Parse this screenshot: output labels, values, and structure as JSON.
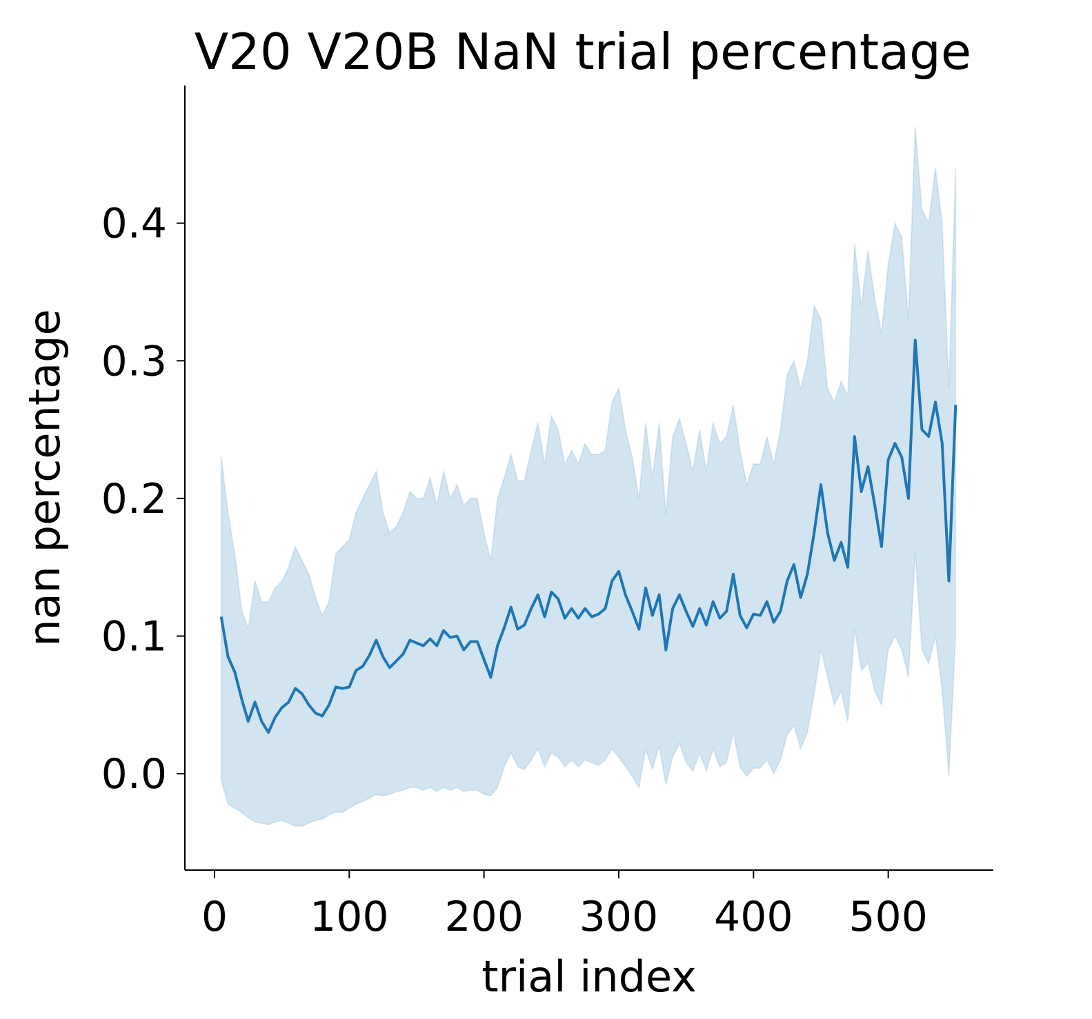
{
  "chart_data": {
    "type": "line",
    "title": "V20 V20B NaN trial percentage",
    "xlabel": "trial index",
    "ylabel": "nan percentage",
    "xlim": [
      -22,
      578
    ],
    "ylim": [
      -0.07,
      0.5
    ],
    "xticks": [
      0,
      100,
      200,
      300,
      400,
      500
    ],
    "xtick_labels": [
      "0",
      "100",
      "200",
      "300",
      "400",
      "500"
    ],
    "yticks": [
      0.0,
      0.1,
      0.2,
      0.3,
      0.4
    ],
    "ytick_labels": [
      "0.0",
      "0.1",
      "0.2",
      "0.3",
      "0.4"
    ],
    "grid": false,
    "legend": "none",
    "colors": {
      "line": "#1f77b4",
      "band": "#1f77b4",
      "band_opacity": 0.2
    },
    "series": [
      {
        "x": [
          5,
          10,
          15,
          20,
          25,
          30,
          35,
          40,
          45,
          50,
          55,
          60,
          65,
          70,
          75,
          80,
          85,
          90,
          95,
          100,
          105,
          110,
          115,
          120,
          125,
          130,
          135,
          140,
          145,
          150,
          155,
          160,
          165,
          170,
          175,
          180,
          185,
          190,
          195,
          200,
          205,
          210,
          215,
          220,
          225,
          230,
          235,
          240,
          245,
          250,
          255,
          260,
          265,
          270,
          275,
          280,
          285,
          290,
          295,
          300,
          305,
          310,
          315,
          320,
          325,
          330,
          335,
          340,
          345,
          350,
          355,
          360,
          365,
          370,
          375,
          380,
          385,
          390,
          395,
          400,
          405,
          410,
          415,
          420,
          425,
          430,
          435,
          440,
          445,
          450,
          455,
          460,
          465,
          470,
          475,
          480,
          485,
          490,
          495,
          500,
          505,
          510,
          515,
          520,
          525,
          530,
          535,
          540,
          545,
          550
        ],
        "mean": [
          0.114,
          0.085,
          0.074,
          0.055,
          0.038,
          0.052,
          0.038,
          0.03,
          0.041,
          0.048,
          0.052,
          0.062,
          0.058,
          0.05,
          0.044,
          0.042,
          0.05,
          0.063,
          0.062,
          0.063,
          0.075,
          0.078,
          0.086,
          0.097,
          0.085,
          0.077,
          0.082,
          0.087,
          0.097,
          0.095,
          0.093,
          0.098,
          0.093,
          0.104,
          0.099,
          0.1,
          0.09,
          0.096,
          0.096,
          0.083,
          0.07,
          0.093,
          0.106,
          0.121,
          0.105,
          0.108,
          0.12,
          0.13,
          0.114,
          0.132,
          0.127,
          0.113,
          0.12,
          0.113,
          0.12,
          0.114,
          0.116,
          0.12,
          0.14,
          0.147,
          0.13,
          0.118,
          0.105,
          0.135,
          0.115,
          0.13,
          0.09,
          0.12,
          0.13,
          0.118,
          0.107,
          0.12,
          0.108,
          0.125,
          0.113,
          0.118,
          0.145,
          0.115,
          0.106,
          0.116,
          0.115,
          0.125,
          0.11,
          0.118,
          0.14,
          0.152,
          0.128,
          0.145,
          0.175,
          0.21,
          0.175,
          0.155,
          0.168,
          0.15,
          0.245,
          0.205,
          0.223,
          0.195,
          0.165,
          0.228,
          0.24,
          0.23,
          0.2,
          0.315,
          0.25,
          0.245,
          0.27,
          0.24,
          0.14,
          0.268
        ],
        "upper": [
          0.23,
          0.19,
          0.16,
          0.12,
          0.105,
          0.14,
          0.125,
          0.125,
          0.135,
          0.14,
          0.15,
          0.165,
          0.155,
          0.145,
          0.128,
          0.115,
          0.125,
          0.16,
          0.165,
          0.17,
          0.19,
          0.2,
          0.21,
          0.22,
          0.19,
          0.175,
          0.18,
          0.19,
          0.205,
          0.2,
          0.2,
          0.215,
          0.195,
          0.22,
          0.2,
          0.21,
          0.195,
          0.2,
          0.2,
          0.175,
          0.155,
          0.2,
          0.215,
          0.232,
          0.213,
          0.213,
          0.235,
          0.255,
          0.225,
          0.26,
          0.25,
          0.225,
          0.235,
          0.225,
          0.24,
          0.232,
          0.232,
          0.235,
          0.27,
          0.28,
          0.25,
          0.23,
          0.2,
          0.255,
          0.215,
          0.255,
          0.188,
          0.245,
          0.258,
          0.24,
          0.22,
          0.25,
          0.22,
          0.255,
          0.24,
          0.245,
          0.268,
          0.235,
          0.21,
          0.225,
          0.225,
          0.245,
          0.225,
          0.25,
          0.29,
          0.3,
          0.28,
          0.3,
          0.34,
          0.33,
          0.28,
          0.27,
          0.285,
          0.275,
          0.385,
          0.34,
          0.38,
          0.345,
          0.32,
          0.37,
          0.4,
          0.39,
          0.33,
          0.47,
          0.41,
          0.4,
          0.44,
          0.4,
          0.28,
          0.44
        ],
        "lower": [
          -0.005,
          -0.022,
          -0.025,
          -0.028,
          -0.032,
          -0.035,
          -0.036,
          -0.037,
          -0.035,
          -0.034,
          -0.036,
          -0.038,
          -0.038,
          -0.036,
          -0.034,
          -0.033,
          -0.03,
          -0.028,
          -0.028,
          -0.025,
          -0.022,
          -0.02,
          -0.018,
          -0.015,
          -0.016,
          -0.015,
          -0.013,
          -0.012,
          -0.01,
          -0.01,
          -0.012,
          -0.01,
          -0.013,
          -0.01,
          -0.012,
          -0.01,
          -0.013,
          -0.012,
          -0.012,
          -0.015,
          -0.016,
          -0.01,
          0.005,
          0.015,
          0.005,
          0.003,
          0.01,
          0.018,
          0.005,
          0.015,
          0.012,
          0.005,
          0.01,
          0.005,
          0.01,
          0.008,
          0.006,
          0.01,
          0.018,
          0.012,
          0.005,
          -0.002,
          -0.01,
          0.018,
          0.003,
          0.02,
          -0.008,
          0.012,
          0.022,
          0.008,
          0.002,
          0.015,
          0.002,
          0.018,
          0.005,
          0.008,
          0.03,
          0.005,
          -0.002,
          0.004,
          0.004,
          0.01,
          0.0,
          0.01,
          0.028,
          0.035,
          0.018,
          0.03,
          0.058,
          0.09,
          0.07,
          0.05,
          0.06,
          0.038,
          0.105,
          0.075,
          0.08,
          0.06,
          0.05,
          0.09,
          0.1,
          0.09,
          0.07,
          0.16,
          0.09,
          0.08,
          0.1,
          0.06,
          -0.002,
          0.1
        ]
      }
    ]
  }
}
